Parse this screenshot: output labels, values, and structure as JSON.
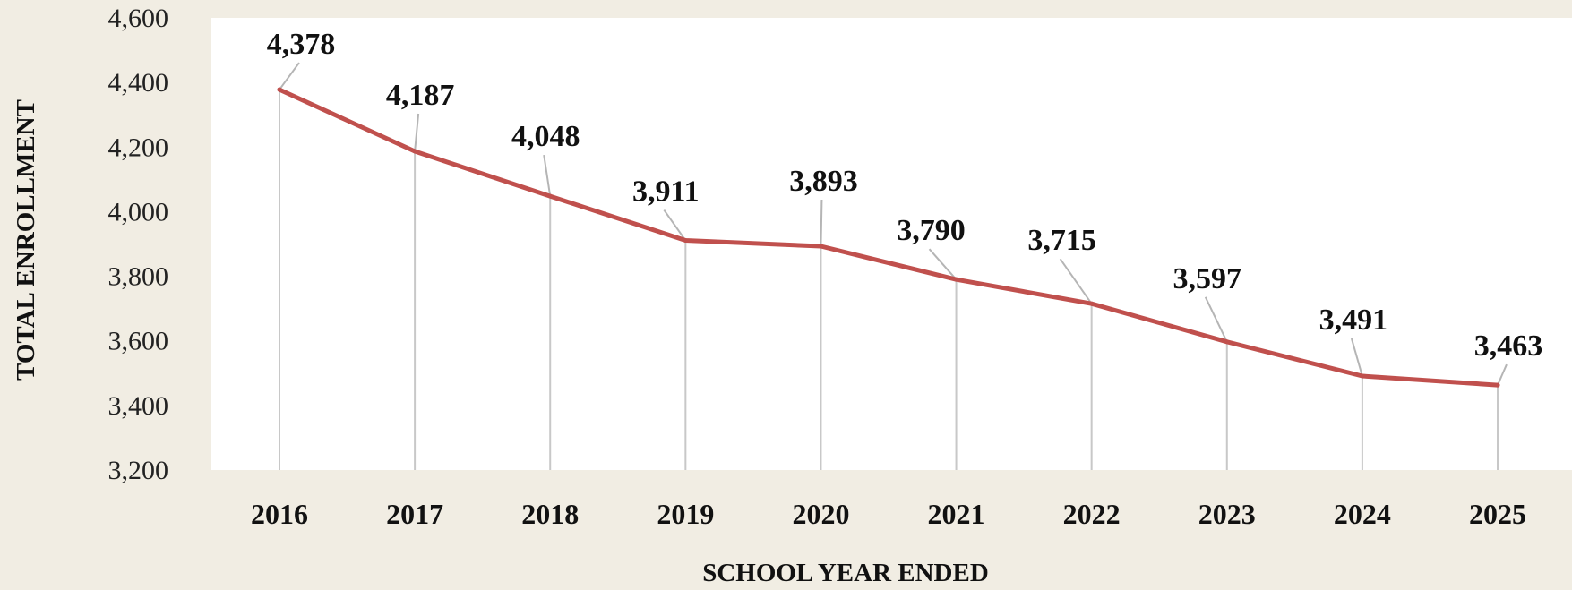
{
  "chart_data": {
    "type": "line",
    "title": "",
    "xlabel": "SCHOOL YEAR ENDED",
    "ylabel": "TOTAL ENROLLMENT",
    "categories": [
      "2016",
      "2017",
      "2018",
      "2019",
      "2020",
      "2021",
      "2022",
      "2023",
      "2024",
      "2025"
    ],
    "series": [
      {
        "values": [
          4378,
          4187,
          4048,
          3911,
          3893,
          3790,
          3715,
          3597,
          3491,
          3463
        ],
        "color": "#c0504d"
      }
    ],
    "value_labels": [
      "4,378",
      "4,187",
      "4,048",
      "3,911",
      "3,893",
      "3,790",
      "3,715",
      "3,597",
      "3,491",
      "3,463"
    ],
    "ylim": [
      3200,
      4600
    ],
    "y_ticks": [
      3200,
      3400,
      3600,
      3800,
      4000,
      4200,
      4400,
      4600
    ],
    "y_tick_labels": [
      "3,200",
      "3,400",
      "3,600",
      "3,800",
      "4,000",
      "4,200",
      "4,400",
      "4,600"
    ],
    "grid": false,
    "legend": "none",
    "drop_lines": true,
    "plot_background": "#ffffff",
    "page_background": "#f1ede3",
    "drop_line_color": "#c8c8c8"
  }
}
